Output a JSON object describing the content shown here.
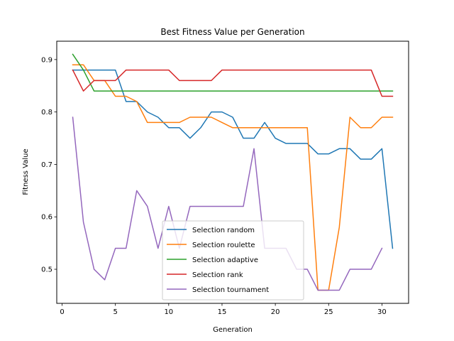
{
  "chart_data": {
    "type": "line",
    "title": "Best Fitness Value per Generation",
    "xlabel": "Generation",
    "ylabel": "Fitness Value",
    "xlim": [
      -0.5,
      32.5
    ],
    "ylim": [
      0.435,
      0.935
    ],
    "xticks": [
      0,
      5,
      10,
      15,
      20,
      25,
      30
    ],
    "yticks": [
      0.5,
      0.6,
      0.7,
      0.8,
      0.9
    ],
    "ytick_labels": [
      "0.5",
      "0.6",
      "0.7",
      "0.8",
      "0.9"
    ],
    "legend_position": "lower-center",
    "grid": false,
    "series": [
      {
        "name": "Selection random",
        "color": "#1f77b4",
        "x": [
          1,
          2,
          3,
          4,
          5,
          6,
          7,
          8,
          9,
          10,
          11,
          12,
          13,
          14,
          15,
          16,
          17,
          18,
          19,
          20,
          21,
          22,
          23,
          24,
          25,
          26,
          27,
          28,
          29,
          30,
          31
        ],
        "values": [
          0.88,
          0.88,
          0.88,
          0.88,
          0.88,
          0.82,
          0.82,
          0.8,
          0.79,
          0.77,
          0.77,
          0.75,
          0.77,
          0.8,
          0.8,
          0.79,
          0.75,
          0.75,
          0.78,
          0.75,
          0.74,
          0.74,
          0.74,
          0.72,
          0.72,
          0.73,
          0.73,
          0.71,
          0.71,
          0.73,
          0.54
        ]
      },
      {
        "name": "Selection roulette",
        "color": "#ff7f0e",
        "x": [
          1,
          2,
          3,
          4,
          5,
          6,
          7,
          8,
          9,
          10,
          11,
          12,
          13,
          14,
          15,
          16,
          17,
          18,
          19,
          20,
          21,
          22,
          23,
          24,
          25,
          26,
          27,
          28,
          29,
          30,
          31
        ],
        "values": [
          0.89,
          0.89,
          0.86,
          0.86,
          0.83,
          0.83,
          0.82,
          0.78,
          0.78,
          0.78,
          0.78,
          0.79,
          0.79,
          0.79,
          0.78,
          0.77,
          0.77,
          0.77,
          0.77,
          0.77,
          0.77,
          0.77,
          0.77,
          0.46,
          0.46,
          0.58,
          0.79,
          0.77,
          0.77,
          0.79,
          0.79
        ]
      },
      {
        "name": "Selection adaptive",
        "color": "#2ca02c",
        "x": [
          1,
          2,
          3,
          4,
          5,
          6,
          7,
          8,
          9,
          10,
          11,
          12,
          13,
          14,
          15,
          16,
          17,
          18,
          19,
          20,
          21,
          22,
          23,
          24,
          25,
          26,
          27,
          28,
          29,
          30,
          31
        ],
        "values": [
          0.91,
          0.88,
          0.84,
          0.84,
          0.84,
          0.84,
          0.84,
          0.84,
          0.84,
          0.84,
          0.84,
          0.84,
          0.84,
          0.84,
          0.84,
          0.84,
          0.84,
          0.84,
          0.84,
          0.84,
          0.84,
          0.84,
          0.84,
          0.84,
          0.84,
          0.84,
          0.84,
          0.84,
          0.84,
          0.84,
          0.84
        ]
      },
      {
        "name": "Selection rank",
        "color": "#d62728",
        "x": [
          1,
          2,
          3,
          4,
          5,
          6,
          7,
          8,
          9,
          10,
          11,
          12,
          13,
          14,
          15,
          16,
          17,
          18,
          19,
          20,
          21,
          22,
          23,
          24,
          25,
          26,
          27,
          28,
          29,
          30,
          31
        ],
        "values": [
          0.88,
          0.84,
          0.86,
          0.86,
          0.86,
          0.88,
          0.88,
          0.88,
          0.88,
          0.88,
          0.86,
          0.86,
          0.86,
          0.86,
          0.88,
          0.88,
          0.88,
          0.88,
          0.88,
          0.88,
          0.88,
          0.88,
          0.88,
          0.88,
          0.88,
          0.88,
          0.88,
          0.88,
          0.88,
          0.83,
          0.83
        ]
      },
      {
        "name": "Selection tournament",
        "color": "#9467bd",
        "x": [
          1,
          2,
          3,
          4,
          5,
          6,
          7,
          8,
          9,
          10,
          11,
          12,
          13,
          14,
          15,
          16,
          17,
          18,
          19,
          20,
          21,
          22,
          23,
          24,
          25,
          26,
          27,
          28,
          29,
          30
        ],
        "values": [
          0.79,
          0.59,
          0.5,
          0.48,
          0.54,
          0.54,
          0.65,
          0.62,
          0.54,
          0.62,
          0.54,
          0.62,
          0.62,
          0.62,
          0.62,
          0.62,
          0.62,
          0.73,
          0.54,
          0.54,
          0.54,
          0.5,
          0.5,
          0.46,
          0.46,
          0.46,
          0.5,
          0.5,
          0.5,
          0.54
        ]
      }
    ]
  }
}
